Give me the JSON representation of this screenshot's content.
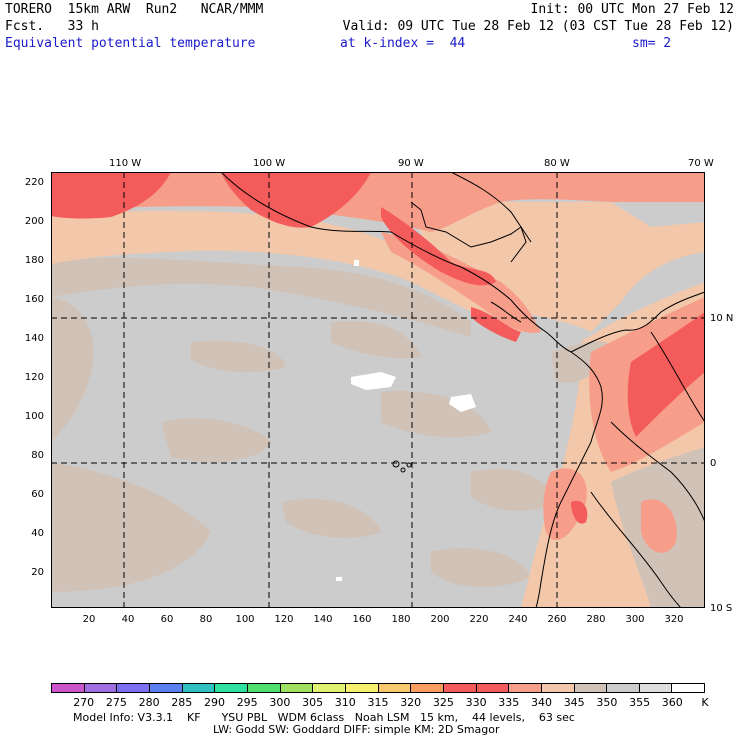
{
  "header": {
    "model": "TORERO",
    "resolution": "15km ARW",
    "run": "Run2",
    "org": "NCAR/MMM",
    "init": "Init: 00 UTC Mon 27 Feb 12",
    "fcst_label": "Fcst.",
    "fcst_value": "33 h",
    "valid": "Valid: 09 UTC Tue 28 Feb 12 (03 CST Tue 28 Feb 12)",
    "field": "Equivalent potential temperature",
    "level": "at k-index =  44",
    "smooth": "sm= 2"
  },
  "map": {
    "lon_labels": [
      "110 W",
      "100 W",
      "90 W",
      "80 W",
      "70 W"
    ],
    "lat_labels": [
      "10 N",
      "0",
      "10 S"
    ],
    "x_ticks": [
      "20",
      "40",
      "60",
      "80",
      "100",
      "120",
      "140",
      "160",
      "180",
      "200",
      "220",
      "240",
      "260",
      "280",
      "300",
      "320"
    ],
    "y_ticks": [
      "20",
      "40",
      "60",
      "80",
      "100",
      "120",
      "140",
      "160",
      "180",
      "200",
      "220"
    ],
    "colors": {
      "ocean_gray": "#cccccc",
      "warm_tan": "#d1c2b8",
      "peach": "#f2c7aa",
      "salmon": "#f79e8a",
      "red": "#f45b5b",
      "white": "#ffffff"
    }
  },
  "colorbar": {
    "colors": [
      "#cc55cc",
      "#a070e0",
      "#7a70f0",
      "#5a80f0",
      "#30c0c0",
      "#30e0a0",
      "#50e070",
      "#a0e060",
      "#e0f070",
      "#f8f070",
      "#f8c870",
      "#f89c60",
      "#f45b5b",
      "#f45b5b",
      "#f79e8a",
      "#f2c7aa",
      "#d1c2b8",
      "#cccccc",
      "#dedede",
      "#ffffff"
    ],
    "labels": [
      "270",
      "275",
      "280",
      "285",
      "290",
      "295",
      "300",
      "305",
      "310",
      "315",
      "320",
      "325",
      "330",
      "335",
      "340",
      "345",
      "350",
      "355",
      "360"
    ],
    "unit": "K"
  },
  "footer": {
    "line1": "Model Info: V3.3.1    KF      YSU PBL   WDM 6class   Noah LSM   15 km,    44 levels,    63 sec",
    "line2": "LW: Godd SW: Goddard DIFF: simple KM: 2D Smagor"
  }
}
